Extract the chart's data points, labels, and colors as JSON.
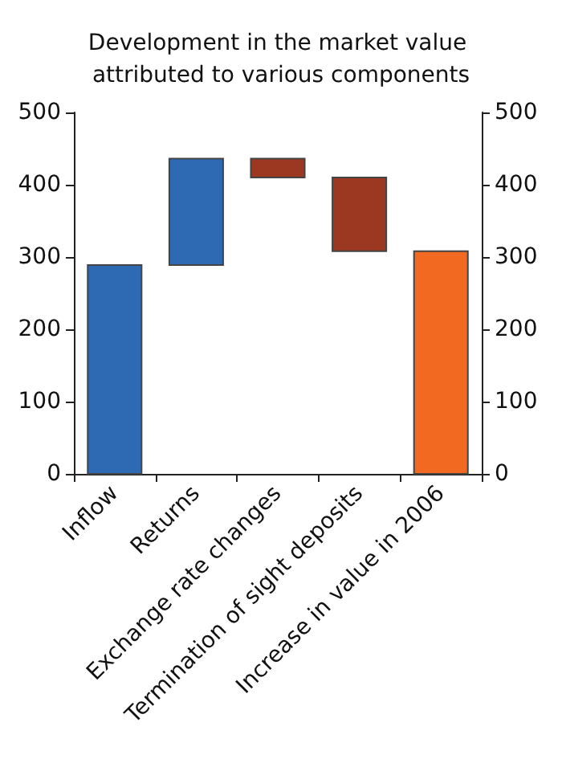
{
  "chart_data": {
    "type": "bar",
    "title": "Development in the market value attributed to various components",
    "categories": [
      "Inflow",
      "Returns",
      "Exchange rate changes",
      "Termination of sight deposits",
      "Increase in value in 2006"
    ],
    "values": [
      289,
      147,
      26,
      102,
      308
    ],
    "base": [
      0,
      289,
      410,
      308,
      0
    ],
    "colors": [
      "#2e69b3",
      "#2e69b3",
      "#9c3722",
      "#9c3722",
      "#f26a22"
    ],
    "ylim": [
      0,
      500
    ],
    "yticks": [
      0,
      100,
      200,
      300,
      400,
      500
    ],
    "y2lim": [
      0,
      500
    ],
    "y2ticks": [
      0,
      100,
      200,
      300,
      400,
      500
    ],
    "grid": false
  }
}
